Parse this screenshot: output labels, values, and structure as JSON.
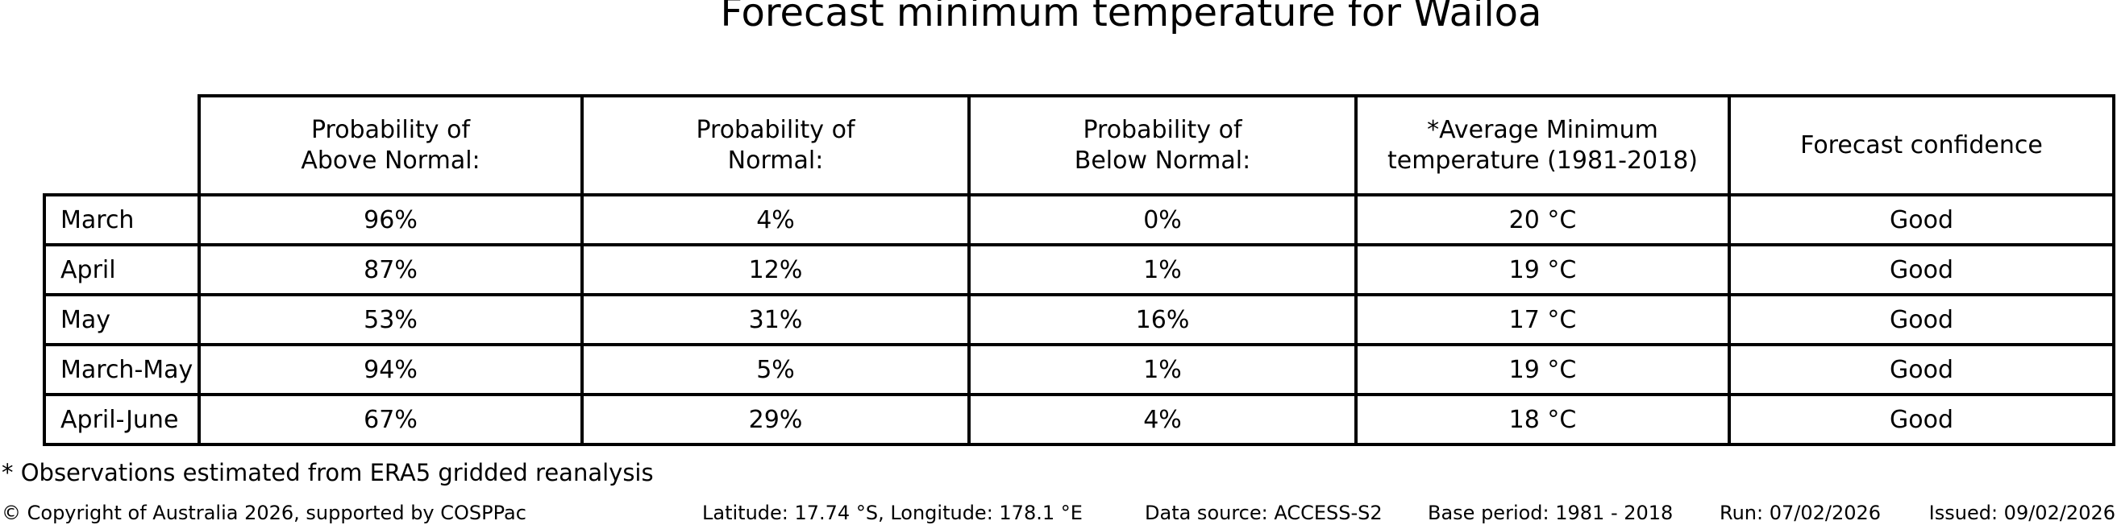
{
  "title": "Forecast minimum temperature for Wailoa",
  "display": {
    "headers": [
      "Probability of\nAbove Normal:",
      "Probability of\nNormal:",
      "Probability of\nBelow Normal:",
      "*Average Minimum\ntemperature (1981-2018)",
      "Forecast confidence"
    ]
  },
  "chart_data": {
    "type": "table",
    "title": "Forecast minimum temperature for Wailoa",
    "columns": [
      "Probability of Above Normal:",
      "Probability of Normal:",
      "Probability of Below Normal:",
      "*Average Minimum temperature (1981-2018)",
      "Forecast confidence"
    ],
    "row_labels": [
      "March",
      "April",
      "May",
      "March-May",
      "April-June"
    ],
    "rows": [
      [
        "96%",
        "4%",
        "0%",
        "20 °C",
        "Good"
      ],
      [
        "87%",
        "12%",
        "1%",
        "19 °C",
        "Good"
      ],
      [
        "53%",
        "31%",
        "16%",
        "17 °C",
        "Good"
      ],
      [
        "94%",
        "5%",
        "1%",
        "19 °C",
        "Good"
      ],
      [
        "67%",
        "29%",
        "4%",
        "18 °C",
        "Good"
      ]
    ],
    "above_normal_pct": [
      96,
      87,
      53,
      94,
      67
    ],
    "normal_pct": [
      4,
      12,
      31,
      5,
      29
    ],
    "below_normal_pct": [
      0,
      1,
      16,
      1,
      4
    ],
    "avg_min_temp_c": [
      20,
      19,
      17,
      19,
      18
    ],
    "forecast_confidence": [
      "Good",
      "Good",
      "Good",
      "Good",
      "Good"
    ]
  },
  "footnote": "* Observations estimated from ERA5 gridded reanalysis",
  "footer": {
    "copyright": "© Copyright of Australia 2026, supported by COSPPac",
    "location": "Latitude: 17.74 °S, Longitude: 178.1 °E",
    "data_source": "Data source: ACCESS-S2",
    "base_period": "Base period: 1981 - 2018",
    "run": "Run: 07/02/2026",
    "issued": "Issued: 09/02/2026"
  }
}
